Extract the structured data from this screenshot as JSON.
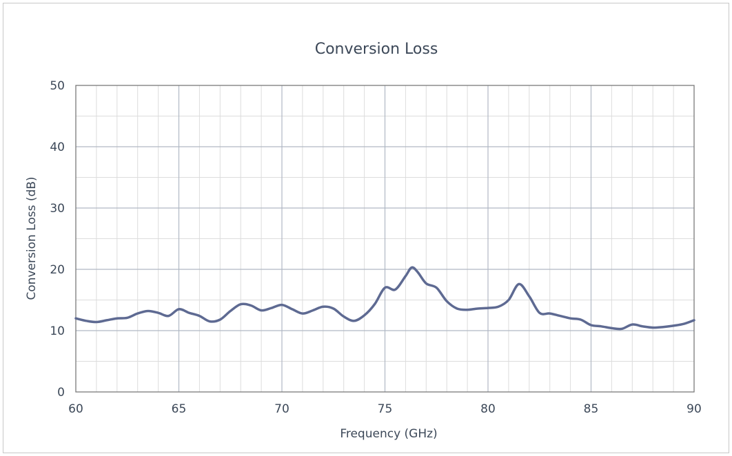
{
  "chart_data": {
    "type": "line",
    "title": "Conversion Loss",
    "xlabel": "Frequency (GHz)",
    "ylabel": "Conversion Loss (dB)",
    "xlim": [
      60,
      90
    ],
    "ylim": [
      0,
      50
    ],
    "xticks": [
      60,
      65,
      70,
      75,
      80,
      85,
      90
    ],
    "yticks": [
      0,
      10,
      20,
      30,
      40,
      50
    ],
    "grid": true,
    "line_color": "#5e6a92",
    "series": [
      {
        "x": [
          60.0,
          60.5,
          61.0,
          61.5,
          62.0,
          62.5,
          63.0,
          63.5,
          64.0,
          64.5,
          65.0,
          65.5,
          66.0,
          66.5,
          67.0,
          67.5,
          68.0,
          68.5,
          69.0,
          69.5,
          70.0,
          70.5,
          71.0,
          71.5,
          72.0,
          72.5,
          73.0,
          73.5,
          74.0,
          74.5,
          75.0,
          75.5,
          76.0,
          76.3,
          76.6,
          77.0,
          77.5,
          78.0,
          78.5,
          79.0,
          79.5,
          80.0,
          80.5,
          81.0,
          81.5,
          82.0,
          82.5,
          83.0,
          83.5,
          84.0,
          84.5,
          85.0,
          85.5,
          86.0,
          86.5,
          87.0,
          87.5,
          88.0,
          88.5,
          89.0,
          89.5,
          90.0
        ],
        "y": [
          12.0,
          11.6,
          11.4,
          11.7,
          12.0,
          12.1,
          12.8,
          13.2,
          12.9,
          12.4,
          13.5,
          12.9,
          12.4,
          11.5,
          11.8,
          13.2,
          14.3,
          14.1,
          13.3,
          13.7,
          14.2,
          13.5,
          12.8,
          13.3,
          13.9,
          13.6,
          12.3,
          11.6,
          12.5,
          14.3,
          17.0,
          16.7,
          18.9,
          20.3,
          19.5,
          17.7,
          17.0,
          14.8,
          13.6,
          13.4,
          13.6,
          13.7,
          13.9,
          15.0,
          17.6,
          15.6,
          12.9,
          12.8,
          12.4,
          12.0,
          11.8,
          10.9,
          10.7,
          10.4,
          10.3,
          11.0,
          10.7,
          10.5,
          10.6,
          10.8,
          11.1,
          11.7
        ]
      }
    ]
  }
}
